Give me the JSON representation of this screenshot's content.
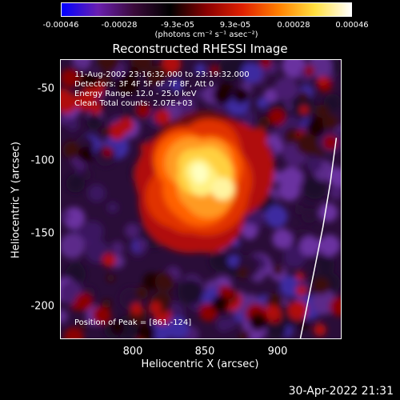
{
  "colorbar": {
    "ticks": [
      "-0.00046",
      "-0.00028",
      "-9.3e-05",
      "9.3e-05",
      "0.00028",
      "0.00046"
    ],
    "units": "(photons cm⁻² s⁻¹ asec⁻²)",
    "colors": [
      "#0000ff",
      "#6a1fb0",
      "#3a0a3a",
      "#000000",
      "#8a0000",
      "#e02000",
      "#ff8000",
      "#ffe040",
      "#ffffff"
    ]
  },
  "title": "Reconstructed RHESSI Image",
  "info": {
    "time": "11-Aug-2002 23:16:32.000 to 23:19:32.000",
    "detectors": "Detectors: 3F 4F 5F 6F 7F 8F, Att 0",
    "energy": "Energy Range: 12.0 - 25.0 keV",
    "clean": "Clean    Total counts: 2.07E+03",
    "peak": "Position of Peak = [861,-124]"
  },
  "timestamp": "30-Apr-2022 21:31",
  "chart_data": {
    "type": "heatmap",
    "title": "Reconstructed RHESSI Image",
    "xlabel": "Heliocentric X (arcsec)",
    "ylabel": "Heliocentric Y (arcsec)",
    "xlim": [
      753,
      940
    ],
    "ylim": [
      -224,
      -38
    ],
    "xticks": [
      800,
      850,
      900
    ],
    "yticks": [
      -50,
      -100,
      -150,
      -200
    ],
    "value_range": [
      -0.00046,
      0.00046
    ],
    "peak_position": [
      861,
      -124
    ],
    "colormap": "purple-black-red-orange-yellow-white",
    "limb_curve": [
      [
        937,
        -90
      ],
      [
        933,
        -120
      ],
      [
        928,
        -150
      ],
      [
        921,
        -185
      ],
      [
        913,
        -224
      ]
    ]
  }
}
